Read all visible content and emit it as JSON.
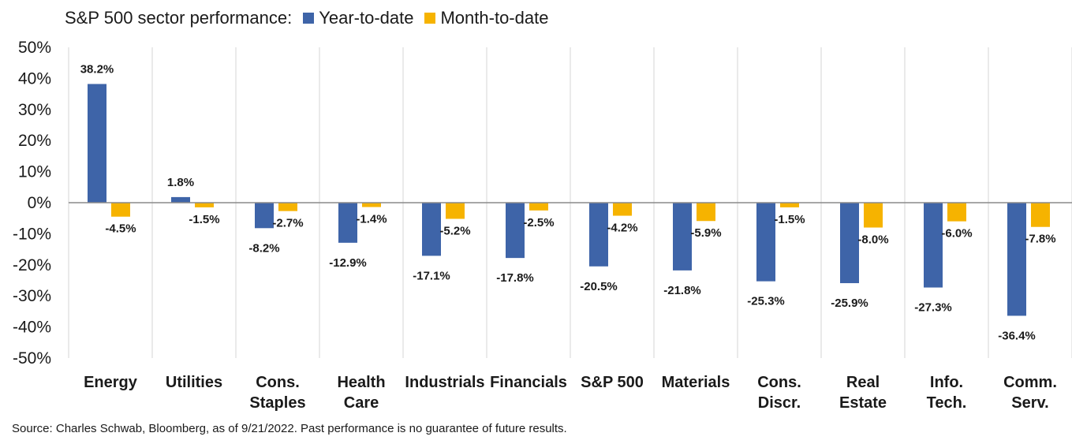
{
  "chart_data": {
    "type": "bar",
    "title": "S&P 500 sector performance:",
    "categories": [
      [
        "Energy"
      ],
      [
        "Utilities"
      ],
      [
        "Cons.",
        "Staples"
      ],
      [
        "Health",
        "Care"
      ],
      [
        "Industrials"
      ],
      [
        "Financials"
      ],
      [
        "S&P 500"
      ],
      [
        "Materials"
      ],
      [
        "Cons.",
        "Discr."
      ],
      [
        "Real",
        "Estate"
      ],
      [
        "Info.",
        "Tech."
      ],
      [
        "Comm.",
        "Serv."
      ]
    ],
    "series": [
      {
        "name": "Year-to-date",
        "color": "#3E64A8",
        "values": [
          38.2,
          1.8,
          -8.2,
          -12.9,
          -17.1,
          -17.8,
          -20.5,
          -21.8,
          -25.3,
          -25.9,
          -27.3,
          -36.4
        ],
        "labels": [
          "38.2%",
          "1.8%",
          "-8.2%",
          "-12.9%",
          "-17.1%",
          "-17.8%",
          "-20.5%",
          "-21.8%",
          "-25.3%",
          "-25.9%",
          "-27.3%",
          "-36.4%"
        ]
      },
      {
        "name": "Month-to-date",
        "color": "#F6B300",
        "values": [
          -4.5,
          -1.5,
          -2.7,
          -1.4,
          -5.2,
          -2.5,
          -4.2,
          -5.9,
          -1.5,
          -8.0,
          -6.0,
          -7.8
        ],
        "labels": [
          "-4.5%",
          "-1.5%",
          "-2.7%",
          "-1.4%",
          "-5.2%",
          "-2.5%",
          "-4.2%",
          "-5.9%",
          "-1.5%",
          "-8.0%",
          "-6.0%",
          "-7.8%"
        ]
      }
    ],
    "ylim": [
      -50,
      50
    ],
    "yticks": [
      50,
      40,
      30,
      20,
      10,
      0,
      -10,
      -20,
      -30,
      -40,
      -50
    ],
    "ytick_labels": [
      "50%",
      "40%",
      "30%",
      "20%",
      "10%",
      "0%",
      "-10%",
      "-20%",
      "-30%",
      "-40%",
      "-50%"
    ],
    "legend_position": "top",
    "grid": "vertical category separators"
  },
  "source_note": "Source: Charles Schwab, Bloomberg, as of 9/21/2022.  Past performance is no guarantee of future results."
}
